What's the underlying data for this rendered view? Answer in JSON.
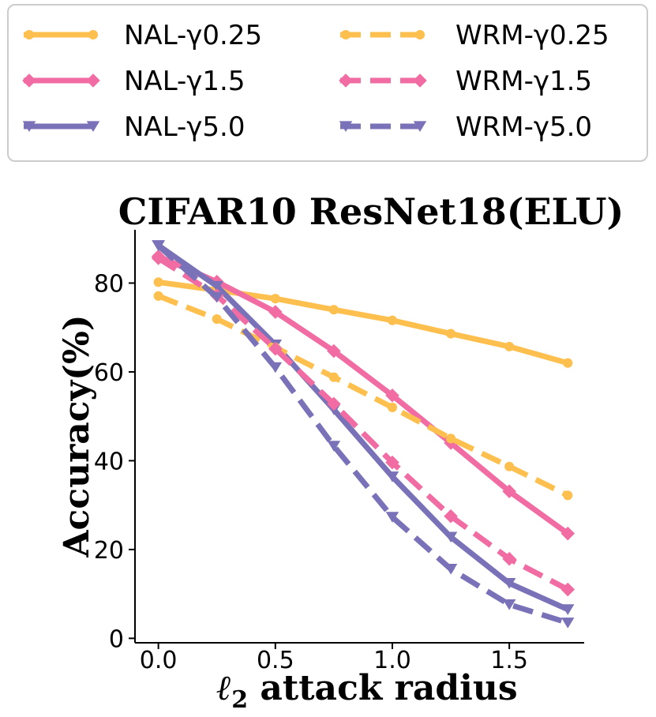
{
  "chart_data": {
    "type": "line",
    "title": "CIFAR10 ResNet18(ELU)",
    "xlabel_symbol": "ℓ",
    "xlabel_subscript": "2",
    "xlabel_text": " attack radius",
    "ylabel": "Accuracy(%)",
    "x": [
      0.0,
      0.25,
      0.5,
      0.75,
      1.0,
      1.25,
      1.5,
      1.75
    ],
    "xlim": [
      -0.1,
      1.82
    ],
    "ylim": [
      -1,
      92
    ],
    "xticks": [
      0.0,
      0.5,
      1.0,
      1.5
    ],
    "xtick_labels": [
      "0.0",
      "0.5",
      "1.0",
      "1.5"
    ],
    "yticks": [
      0,
      20,
      40,
      60,
      80
    ],
    "ytick_labels": [
      "0",
      "20",
      "40",
      "60",
      "80"
    ],
    "legend_position": "top, above plot, two columns",
    "series": [
      {
        "name": "NAL-γ0.25",
        "color": "#FDC04F",
        "dash": "solid",
        "marker": "circle",
        "values": [
          80.2,
          78.4,
          76.5,
          74.0,
          71.6,
          68.6,
          65.7,
          62.0
        ]
      },
      {
        "name": "NAL-γ1.5",
        "color": "#F06CA2",
        "dash": "solid",
        "marker": "diamond",
        "values": [
          86.0,
          80.3,
          73.5,
          64.7,
          54.7,
          44.0,
          33.1,
          23.6
        ]
      },
      {
        "name": "NAL-γ5.0",
        "color": "#7A72B8",
        "dash": "solid",
        "marker": "triangle",
        "values": [
          88.5,
          79.3,
          66.1,
          51.5,
          36.4,
          22.8,
          12.4,
          6.5
        ]
      },
      {
        "name": "WRM-γ0.25",
        "color": "#FDC04F",
        "dash": "dashed",
        "marker": "circle",
        "values": [
          77.1,
          71.9,
          65.5,
          58.8,
          52.0,
          45.0,
          38.7,
          32.2
        ]
      },
      {
        "name": "WRM-γ1.5",
        "color": "#F06CA2",
        "dash": "dashed",
        "marker": "diamond",
        "values": [
          85.6,
          77.2,
          65.2,
          52.8,
          39.6,
          27.5,
          17.9,
          11.0
        ]
      },
      {
        "name": "WRM-γ5.0",
        "color": "#7A72B8",
        "dash": "dashed",
        "marker": "triangle",
        "values": [
          88.4,
          76.8,
          61.0,
          43.3,
          27.3,
          15.6,
          7.6,
          3.5
        ]
      }
    ]
  }
}
